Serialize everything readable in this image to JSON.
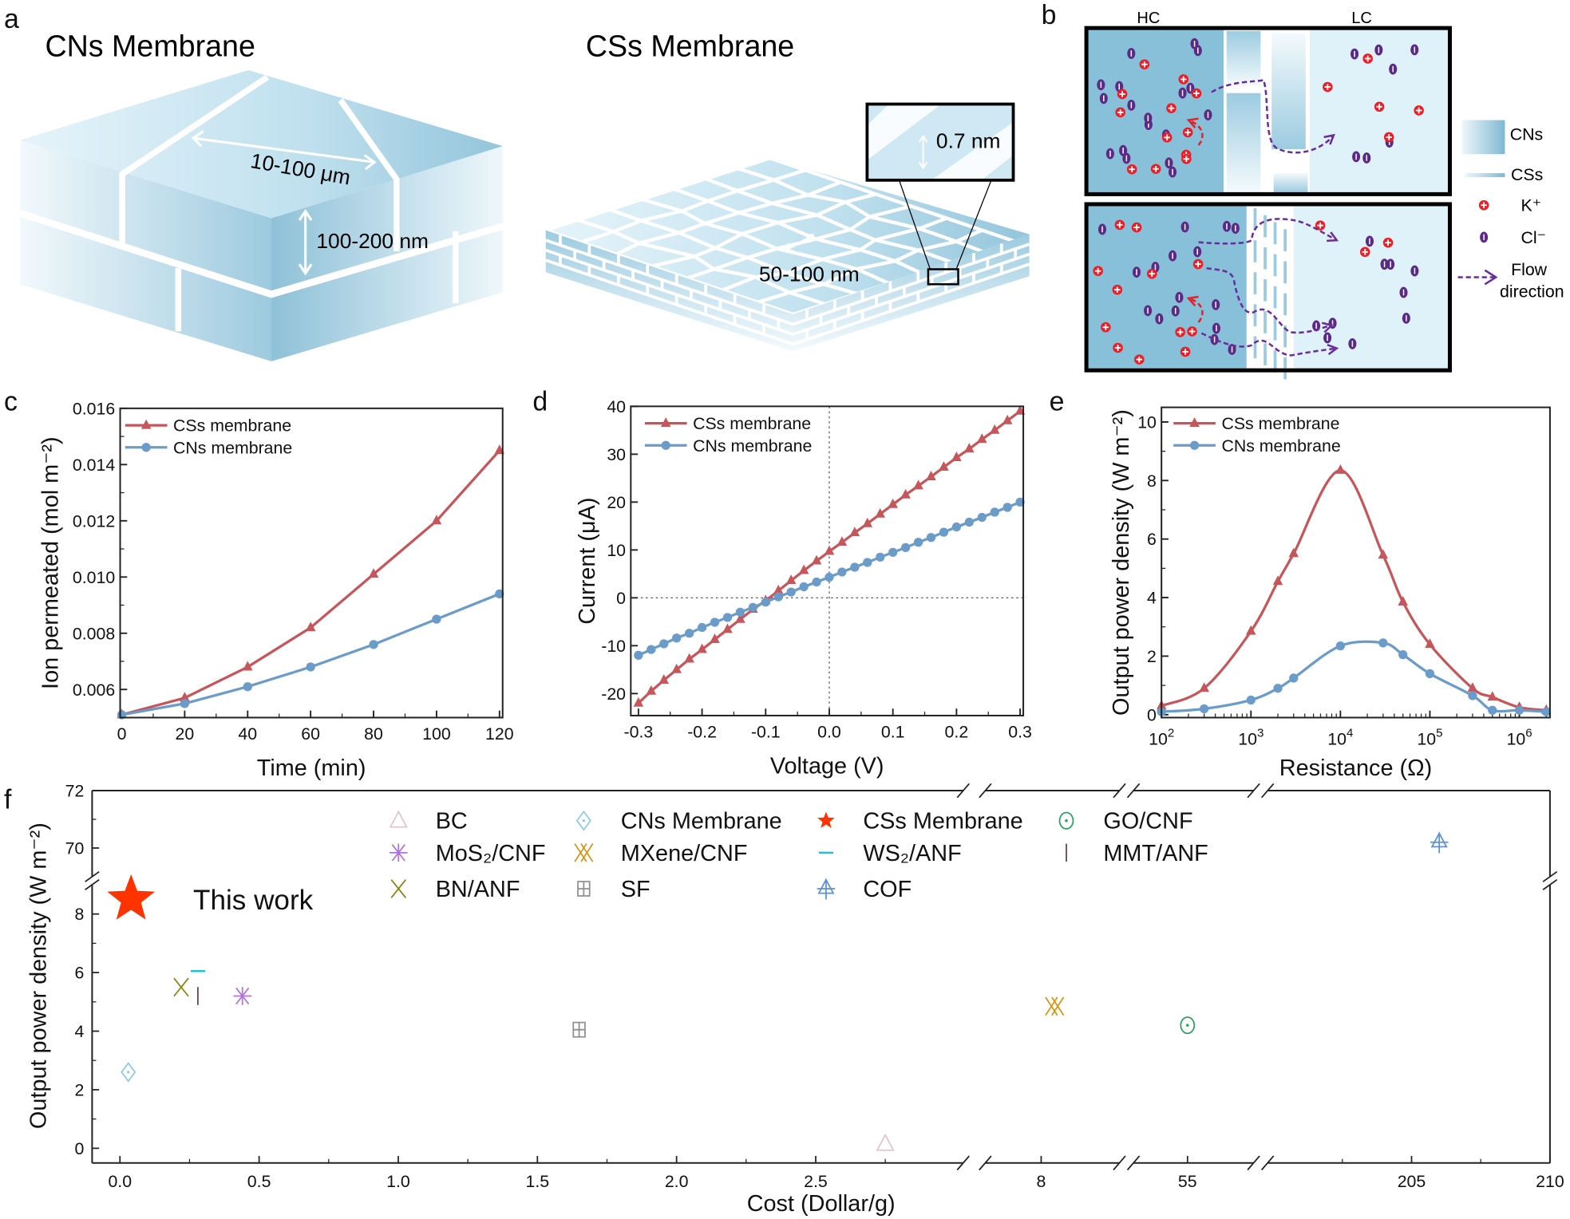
{
  "panel_letters": {
    "a": "a",
    "b": "b",
    "c": "c",
    "d": "d",
    "e": "e",
    "f": "f"
  },
  "panel_a": {
    "title_left": "CNs Membrane",
    "title_right": "CSs Membrane",
    "lateral_size": "10-100 μm",
    "thickness": "100-200 nm",
    "cs_size": "50-100 nm",
    "interlayer_spacing": "0.7 nm",
    "colors": {
      "light": "#e6f4fa",
      "mid": "#b9dcec",
      "dark": "#8ec1d8"
    }
  },
  "panel_b": {
    "hc_label": "HC",
    "lc_label": "LC",
    "legend": {
      "cns": "CNs",
      "css": "CSs",
      "k": "K⁺",
      "cl": "Cl⁻",
      "flow_line1": "Flow",
      "flow_line2": "direction"
    },
    "colors": {
      "hc": "#88bfd9",
      "lc": "#e0f2f9",
      "k_ion": "#ee1c24",
      "cl_ion": "#5b2a86",
      "flow": "#6a2c9a"
    }
  },
  "chart_data": [
    {
      "type": "line",
      "xlabel": "Time (min)",
      "ylabel": "Ion permeated (mol m⁻²)",
      "xlim": [
        -0.5,
        121
      ],
      "ylim": [
        0.005,
        0.016
      ],
      "x_ticks": [
        0,
        20,
        40,
        60,
        80,
        100,
        120
      ],
      "x_tick_labels": [
        "0",
        "20",
        "40",
        "60",
        "80",
        "100",
        "120"
      ],
      "x_minor": 10,
      "y_ticks": [
        0.006,
        0.008,
        0.01,
        0.012,
        0.014,
        0.016
      ],
      "y_tick_labels": [
        "0.006",
        "0.008",
        "0.010",
        "0.012",
        "0.014",
        "0.016"
      ],
      "y_minor": 0.001,
      "legend": "top-left",
      "series": [
        {
          "name": "CSs membrane",
          "color": "#c5565b",
          "marker": "triangle",
          "x": [
            0,
            20,
            40,
            60,
            80,
            100,
            120
          ],
          "y": [
            0.0051,
            0.0057,
            0.0068,
            0.0082,
            0.0101,
            0.012,
            0.0145
          ]
        },
        {
          "name": "CNs membrane",
          "color": "#6b9bc8",
          "marker": "circle",
          "x": [
            0,
            20,
            40,
            60,
            80,
            100,
            120
          ],
          "y": [
            0.0051,
            0.0055,
            0.0061,
            0.0068,
            0.0076,
            0.0085,
            0.0094
          ]
        }
      ]
    },
    {
      "type": "line",
      "xlabel": "Voltage (V)",
      "ylabel": "Current (μA)",
      "xlim": [
        -0.312,
        0.305
      ],
      "ylim": [
        -24.6,
        40
      ],
      "x_ticks": [
        -0.3,
        -0.2,
        -0.1,
        0,
        0.1,
        0.2,
        0.3
      ],
      "x_tick_labels": [
        "-0.3",
        "-0.2",
        "-0.1",
        "0.0",
        "0.1",
        "0.2",
        "0.3"
      ],
      "x_minor": 0.05,
      "y_ticks": [
        -20,
        -10,
        0,
        10,
        20,
        30,
        40
      ],
      "y_tick_labels": [
        "-20",
        "-10",
        "0",
        "10",
        "20",
        "30",
        "40"
      ],
      "y_minor": 5,
      "reference_lines": {
        "x": 0,
        "y": 0
      },
      "legend": "top-left",
      "series": [
        {
          "name": "CSs membrane",
          "color": "#c5565b",
          "marker": "triangle",
          "x": [
            -0.3,
            -0.28,
            -0.26,
            -0.24,
            -0.22,
            -0.2,
            -0.18,
            -0.16,
            -0.14,
            -0.12,
            -0.1,
            -0.08,
            -0.06,
            -0.04,
            -0.02,
            0,
            0.02,
            0.04,
            0.06,
            0.08,
            0.1,
            0.12,
            0.14,
            0.16,
            0.18,
            0.2,
            0.22,
            0.24,
            0.26,
            0.28,
            0.3
          ],
          "y": [
            -22,
            -19.5,
            -17.2,
            -15,
            -12.8,
            -10.8,
            -8.7,
            -6.6,
            -4.5,
            -2.4,
            -0.6,
            1.5,
            3.6,
            5.7,
            7.7,
            9.7,
            11.6,
            13.6,
            15.5,
            17.5,
            19.5,
            21.5,
            23.4,
            25.3,
            27.3,
            29.3,
            31.1,
            33.1,
            35,
            37,
            39
          ]
        },
        {
          "name": "CNs membrane",
          "color": "#6b9bc8",
          "marker": "circle",
          "x": [
            -0.3,
            -0.28,
            -0.26,
            -0.24,
            -0.22,
            -0.2,
            -0.18,
            -0.16,
            -0.14,
            -0.12,
            -0.1,
            -0.08,
            -0.06,
            -0.04,
            -0.02,
            0,
            0.02,
            0.04,
            0.06,
            0.08,
            0.1,
            0.12,
            0.14,
            0.16,
            0.18,
            0.2,
            0.22,
            0.24,
            0.26,
            0.28,
            0.3
          ],
          "y": [
            -12,
            -10.8,
            -9.6,
            -8.4,
            -7.4,
            -6.2,
            -5.1,
            -4.1,
            -3,
            -2,
            -0.9,
            0.2,
            1.2,
            2.3,
            3.3,
            4.3,
            5.4,
            6.4,
            7.4,
            8.5,
            9.5,
            10.5,
            11.6,
            12.6,
            13.7,
            14.8,
            15.8,
            16.8,
            17.9,
            18.9,
            20
          ]
        }
      ]
    },
    {
      "type": "line",
      "xlabel": "Resistance (Ω)",
      "ylabel": "Output power density (W m⁻²)",
      "xscale": "log",
      "xlim": [
        100,
        2200000
      ],
      "ylim": [
        -0.1,
        10.5
      ],
      "x_ticks": [
        100,
        1000,
        10000,
        100000,
        1000000
      ],
      "x_tick_labels": [
        "10^2",
        "10^3",
        "10^4",
        "10^5",
        "10^6"
      ],
      "y_ticks": [
        0,
        2,
        4,
        6,
        8,
        10
      ],
      "y_tick_labels": [
        "0",
        "2",
        "4",
        "6",
        "8",
        "10"
      ],
      "y_minor": 1,
      "legend": "top-left",
      "series": [
        {
          "name": "CSs membrane",
          "color": "#c5565b",
          "marker": "triangle",
          "smooth": true,
          "x": [
            100,
            300,
            1000,
            2000,
            3000,
            10000,
            30000,
            50000,
            100000,
            300000,
            500000,
            1000000,
            2000000
          ],
          "y": [
            0.3,
            0.9,
            2.85,
            4.55,
            5.5,
            8.35,
            5.45,
            3.85,
            2.4,
            0.9,
            0.6,
            0.25,
            0.15
          ]
        },
        {
          "name": "CNs membrane",
          "color": "#6b9bc8",
          "marker": "circle",
          "smooth": true,
          "x": [
            100,
            300,
            1000,
            2000,
            3000,
            10000,
            30000,
            50000,
            100000,
            300000,
            500000,
            1000000,
            2000000
          ],
          "y": [
            0.1,
            0.2,
            0.5,
            0.9,
            1.25,
            2.35,
            2.45,
            2.05,
            1.4,
            0.65,
            0.15,
            0.15,
            0.1
          ]
        }
      ]
    },
    {
      "type": "scatter",
      "xlabel": "Cost (Dollar/g)",
      "ylabel": "Output power density (W m⁻²)",
      "x_segments": [
        [
          -0.1,
          3.03
        ],
        [
          7.5,
          8.7
        ],
        [
          54.1,
          56.1
        ],
        [
          199.8,
          210
        ]
      ],
      "y_segments": [
        [
          -0.5,
          9.0
        ],
        [
          69,
          72
        ]
      ],
      "x_ticks": [
        0,
        0.5,
        1.0,
        1.5,
        2.0,
        2.5,
        8,
        55,
        205,
        210
      ],
      "x_tick_labels": [
        "0.0",
        "0.5",
        "1.0",
        "1.5",
        "2.0",
        "2.5",
        "8",
        "55",
        "205",
        "210"
      ],
      "y_ticks": [
        0,
        2,
        4,
        6,
        8,
        70,
        72
      ],
      "y_tick_labels": [
        "0",
        "2",
        "4",
        "6",
        "8",
        "70",
        "72"
      ],
      "annotation": {
        "text": "This work",
        "color": "#ff0000",
        "x": 0.04,
        "y": 8.5
      },
      "legend": "top-center",
      "series": [
        {
          "name": "BC",
          "marker": "triangle-open",
          "color": "#e6c4cf",
          "x": 2.75,
          "y": 0.15
        },
        {
          "name": "CNs Membrane",
          "marker": "diamond-open",
          "color": "#8ecbe4",
          "x": 0.03,
          "y": 2.6
        },
        {
          "name": "CSs Membrane",
          "marker": "star",
          "color": "#ff3300",
          "x": 0.04,
          "y": 8.5
        },
        {
          "name": "GO/CNF",
          "marker": "circle-dot",
          "color": "#2ca25f",
          "x": 55,
          "y": 4.2
        },
        {
          "name": "MoS₂/CNF",
          "marker": "asterisk",
          "color": "#b072e0",
          "x": 0.44,
          "y": 5.2
        },
        {
          "name": "MXene/CNF",
          "marker": "double-x",
          "color": "#d4961a",
          "x": 8.12,
          "y": 4.85
        },
        {
          "name": "WS₂/ANF",
          "marker": "dash",
          "color": "#20c4d0",
          "x": 0.28,
          "y": 6.05
        },
        {
          "name": "MMT/ANF",
          "marker": "vbar",
          "color": "#6e4040",
          "x": 0.28,
          "y": 5.2
        },
        {
          "name": "BN/ANF",
          "marker": "x",
          "color": "#858512",
          "x": 0.22,
          "y": 5.5
        },
        {
          "name": "SF",
          "marker": "square-cross",
          "color": "#909090",
          "x": 1.65,
          "y": 4.05
        },
        {
          "name": "COF",
          "marker": "triangle-cross",
          "color": "#5a92d4",
          "x": 206,
          "y": 70.2
        }
      ]
    }
  ]
}
